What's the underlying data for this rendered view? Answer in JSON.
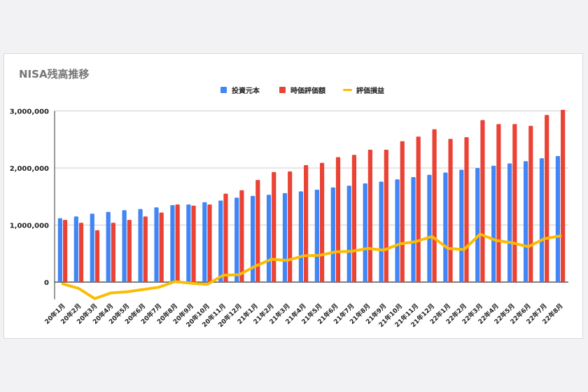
{
  "chart_data": {
    "type": "bar",
    "title": "NISA残高推移",
    "xlabel": "",
    "ylabel": "",
    "ylim": [
      -300000,
      3000000
    ],
    "yticks": [
      0,
      1000000,
      2000000,
      3000000
    ],
    "ytick_labels": [
      "0",
      "1,000,000",
      "2,000,000",
      "3,000,000"
    ],
    "grid": true,
    "legend_position": "top-center",
    "categories": [
      "20年1月",
      "20年2月",
      "20年3月",
      "20年4月",
      "20年5月",
      "20年6月",
      "20年7月",
      "20年8月",
      "20年9月",
      "20年10月",
      "20年11月",
      "20年12月",
      "21年1月",
      "21年2月",
      "21年3月",
      "21年4月",
      "21年5月",
      "21年6月",
      "21年7月",
      "21年8月",
      "21年9月",
      "21年10月",
      "21年11月",
      "21年12月",
      "22年1月",
      "22年2月",
      "22年3月",
      "22年4月",
      "22年5月",
      "22年6月",
      "22年7月",
      "22年8月"
    ],
    "series": [
      {
        "name": "投資元本",
        "kind": "bar",
        "color": "#4285f4",
        "values": [
          1120000,
          1150000,
          1200000,
          1230000,
          1260000,
          1280000,
          1310000,
          1350000,
          1360000,
          1400000,
          1430000,
          1480000,
          1510000,
          1530000,
          1560000,
          1590000,
          1620000,
          1660000,
          1690000,
          1730000,
          1760000,
          1800000,
          1840000,
          1880000,
          1920000,
          1970000,
          2000000,
          2040000,
          2080000,
          2120000,
          2170000,
          2210000
        ]
      },
      {
        "name": "時価評価額",
        "kind": "bar",
        "color": "#ea4335",
        "values": [
          1090000,
          1040000,
          910000,
          1040000,
          1090000,
          1150000,
          1220000,
          1360000,
          1340000,
          1360000,
          1550000,
          1610000,
          1790000,
          1930000,
          1940000,
          2050000,
          2090000,
          2190000,
          2230000,
          2320000,
          2320000,
          2470000,
          2550000,
          2680000,
          2510000,
          2540000,
          2840000,
          2770000,
          2770000,
          2740000,
          2930000,
          3020000
        ]
      },
      {
        "name": "評価損益",
        "kind": "line",
        "color": "#fbbc04",
        "values": [
          -30000,
          -110000,
          -290000,
          -190000,
          -170000,
          -130000,
          -90000,
          10000,
          -20000,
          -40000,
          120000,
          130000,
          280000,
          400000,
          380000,
          460000,
          470000,
          530000,
          540000,
          590000,
          560000,
          670000,
          710000,
          800000,
          590000,
          570000,
          840000,
          730000,
          690000,
          620000,
          760000,
          810000
        ]
      }
    ]
  }
}
